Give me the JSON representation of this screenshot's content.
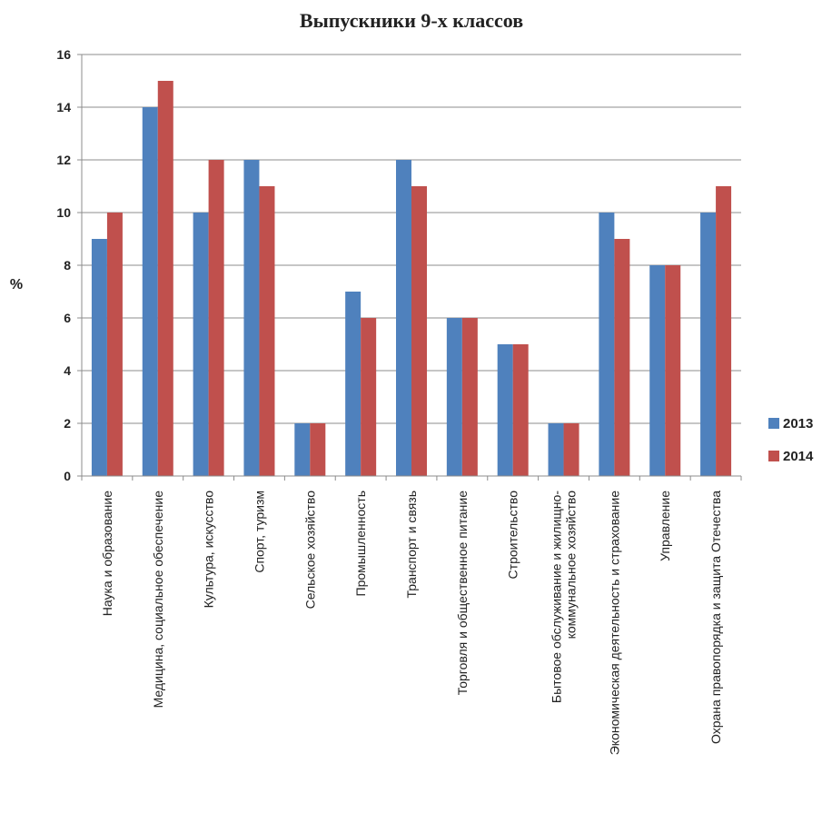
{
  "chart_data": {
    "type": "bar",
    "title": "Выпускники 9-х классов",
    "xlabel": "",
    "ylabel": "%",
    "ylim": [
      0,
      16
    ],
    "y_ticks": [
      "0",
      "2",
      "4",
      "6",
      "8",
      "10",
      "12",
      "14",
      "16"
    ],
    "grid": true,
    "legend_position": "right",
    "categories": [
      "Наука и образование",
      "Медицина, социальное обеспечение",
      "Культура, искусство",
      "Спорт, туризм",
      "Сельское хозяйство",
      "Промышленность",
      "Транспорт и связь",
      "Торговля и общественное питание",
      "Строительство",
      "Бытовое обслуживание и жилищно-коммунальное хозяйство",
      "Экономическая деятельность и страхование",
      "Управление",
      "Охрана правопорядка и защита Отечества"
    ],
    "series": [
      {
        "name": "2013",
        "color": "#4F81BD",
        "values": [
          9,
          14,
          10,
          12,
          2,
          7,
          12,
          6,
          5,
          2,
          10,
          8,
          10
        ]
      },
      {
        "name": "2014",
        "color": "#C0504D",
        "values": [
          10,
          15,
          12,
          11,
          2,
          6,
          11,
          6,
          5,
          2,
          9,
          8,
          11
        ]
      }
    ]
  }
}
